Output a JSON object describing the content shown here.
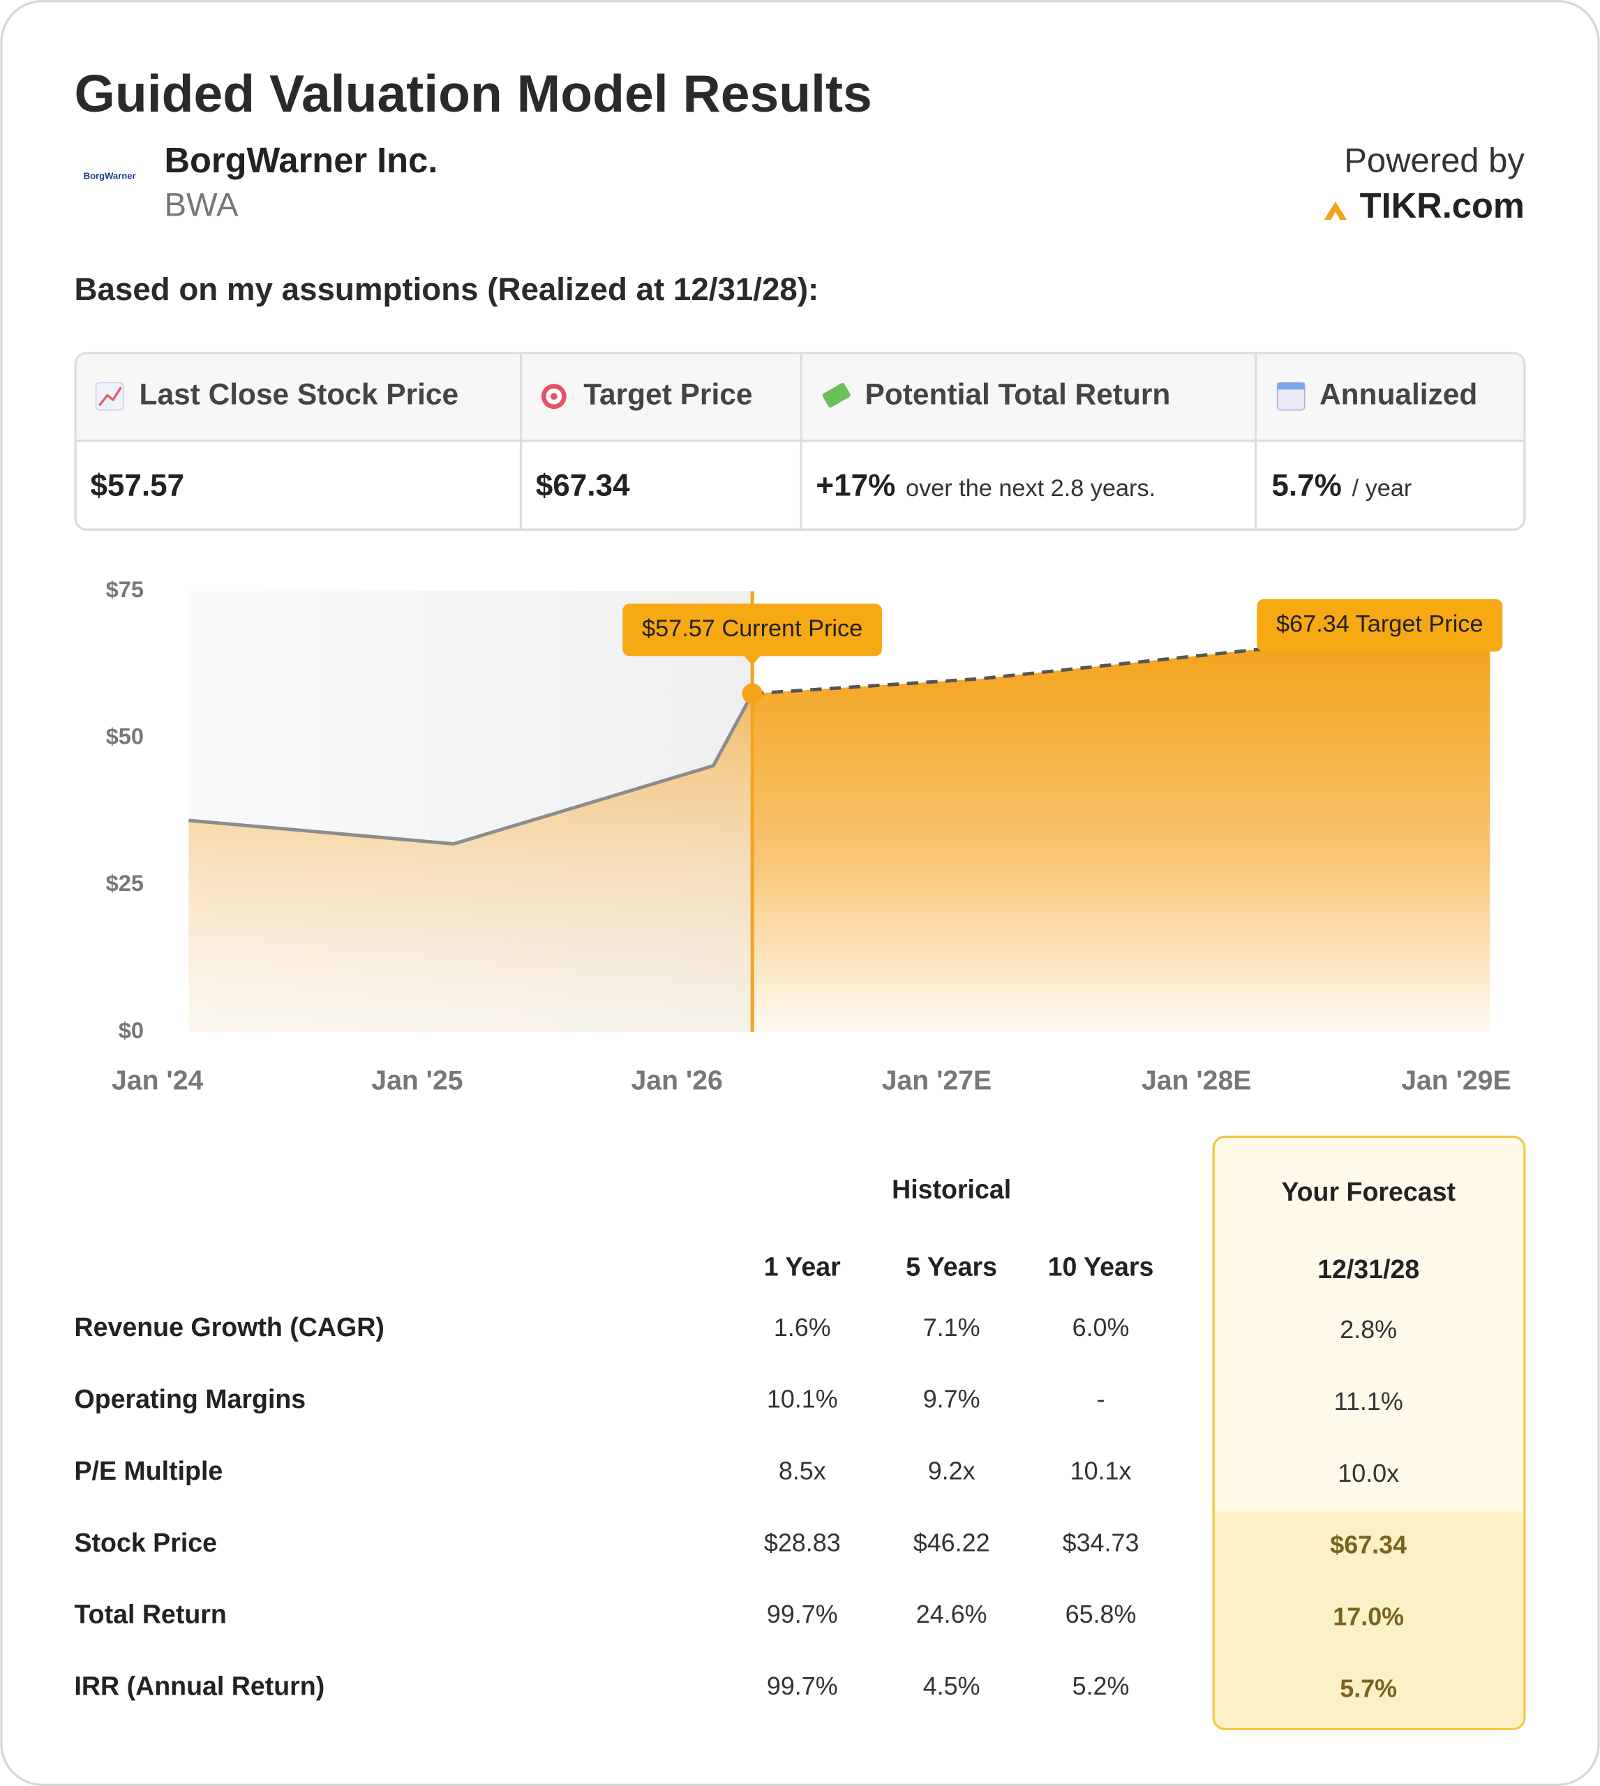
{
  "header": {
    "title": "Guided Valuation Model Results",
    "logo_text": "BorgWarner",
    "company": "BorgWarner Inc.",
    "ticker": "BWA",
    "powered_by": "Powered by",
    "brand": "TIKR.com"
  },
  "subtitle": "Based on my assumptions (Realized at 12/31/28):",
  "summary": {
    "headers": [
      "Last Close Stock Price",
      "Target Price",
      "Potential Total Return",
      "Annualized"
    ],
    "cells": [
      {
        "value": "$57.57"
      },
      {
        "value": "$67.34"
      },
      {
        "value": "+17%",
        "note": "over the next 2.8 years."
      },
      {
        "value": "5.7%",
        "note": "/ year"
      }
    ]
  },
  "chart_data": {
    "type": "line",
    "series": [
      {
        "name": "Historical",
        "color": "#8c8c8c",
        "x": [
          2024.12,
          2025.14,
          2026.14,
          2026.29
        ],
        "values": [
          36.0,
          32.0,
          45.3,
          57.57
        ]
      },
      {
        "name": "Forecast",
        "color": "#555555",
        "dashed": true,
        "x": [
          2026.29,
          2027.17,
          2028.24,
          2029.13
        ],
        "values": [
          57.57,
          60.1,
          65.1,
          67.34
        ]
      }
    ],
    "annotations": [
      {
        "text": "$57.57 Current Price"
      },
      {
        "text": "$67.34 Target Price"
      }
    ],
    "xlim": [
      2024,
      2029
    ],
    "xticks": [
      {
        "value": 2024,
        "label": "Jan '24"
      },
      {
        "value": 2025,
        "label": "Jan '25"
      },
      {
        "value": 2026,
        "label": "Jan '26"
      },
      {
        "value": 2027,
        "label": "Jan '27E"
      },
      {
        "value": 2028,
        "label": "Jan '28E"
      },
      {
        "value": 2029,
        "label": "Jan '29E"
      }
    ],
    "ylim": [
      0,
      75
    ],
    "yticks": [
      {
        "value": 0,
        "label": "$0"
      },
      {
        "value": 25,
        "label": "$25"
      },
      {
        "value": 50,
        "label": "$50"
      },
      {
        "value": 75,
        "label": "$75"
      }
    ],
    "grid": false
  },
  "table": {
    "historical": "Historical",
    "forecast": "Your Forecast",
    "columns": [
      "1 Year",
      "5 Years",
      "10 Years",
      "12/31/28"
    ],
    "rows": [
      [
        "Revenue Growth (CAGR)",
        "1.6%",
        "7.1%",
        "6.0%",
        "2.8%"
      ],
      [
        "Operating Margins",
        "10.1%",
        "9.7%",
        "-",
        "11.1%"
      ],
      [
        "P/E Multiple",
        "8.5x",
        "9.2x",
        "10.1x",
        "10.0x"
      ],
      [
        "Stock Price",
        "$28.83",
        "$46.22",
        "$34.73",
        "$67.34"
      ],
      [
        "Total Return",
        "99.7%",
        "24.6%",
        "65.8%",
        "17.0%"
      ],
      [
        "IRR (Annual Return)",
        "99.7%",
        "4.5%",
        "5.2%",
        "5.7%"
      ]
    ]
  }
}
